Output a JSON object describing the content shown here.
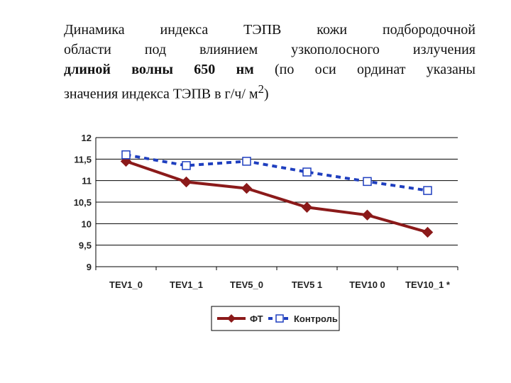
{
  "caption": {
    "line1": "Динамика индекса ТЭПВ  кожи подбородочной",
    "line2": "области под влиянием узкополосного излучения",
    "line3_bold": "длиной волны 650 нм",
    "line3_rest": "  (по оси ординат указаны",
    "line4": "значения индекса ТЭПВ в г/ч/ м",
    "line4_sup": "2",
    "line4_end": ")"
  },
  "colors": {
    "ft": "#8b1a1a",
    "control": "#1f3fbf",
    "grid": "#000000"
  },
  "chart_data": {
    "type": "line",
    "title": "",
    "xlabel": "",
    "ylabel": "",
    "categories": [
      "TEV1_0",
      "TEV1_1",
      "TEV5_0",
      "TEV5 1",
      "TEV10 0",
      "TEV10_1 *"
    ],
    "ylim": [
      9,
      12
    ],
    "yticks": [
      "12",
      "11,5",
      "11",
      "10,5",
      "10",
      "9,5",
      "9"
    ],
    "ytick_values": [
      12,
      11.5,
      11,
      10.5,
      10,
      9.5,
      9
    ],
    "grid": true,
    "legend_position": "bottom",
    "series": [
      {
        "name": "ФТ",
        "values": [
          11.45,
          10.97,
          10.82,
          10.38,
          10.2,
          9.8
        ],
        "style": "solid",
        "marker": "diamond",
        "color": "#8b1a1a"
      },
      {
        "name": "Контроль",
        "values": [
          11.6,
          11.35,
          11.45,
          11.2,
          10.98,
          10.77
        ],
        "style": "dashed",
        "marker": "square",
        "color": "#1f3fbf"
      }
    ]
  }
}
